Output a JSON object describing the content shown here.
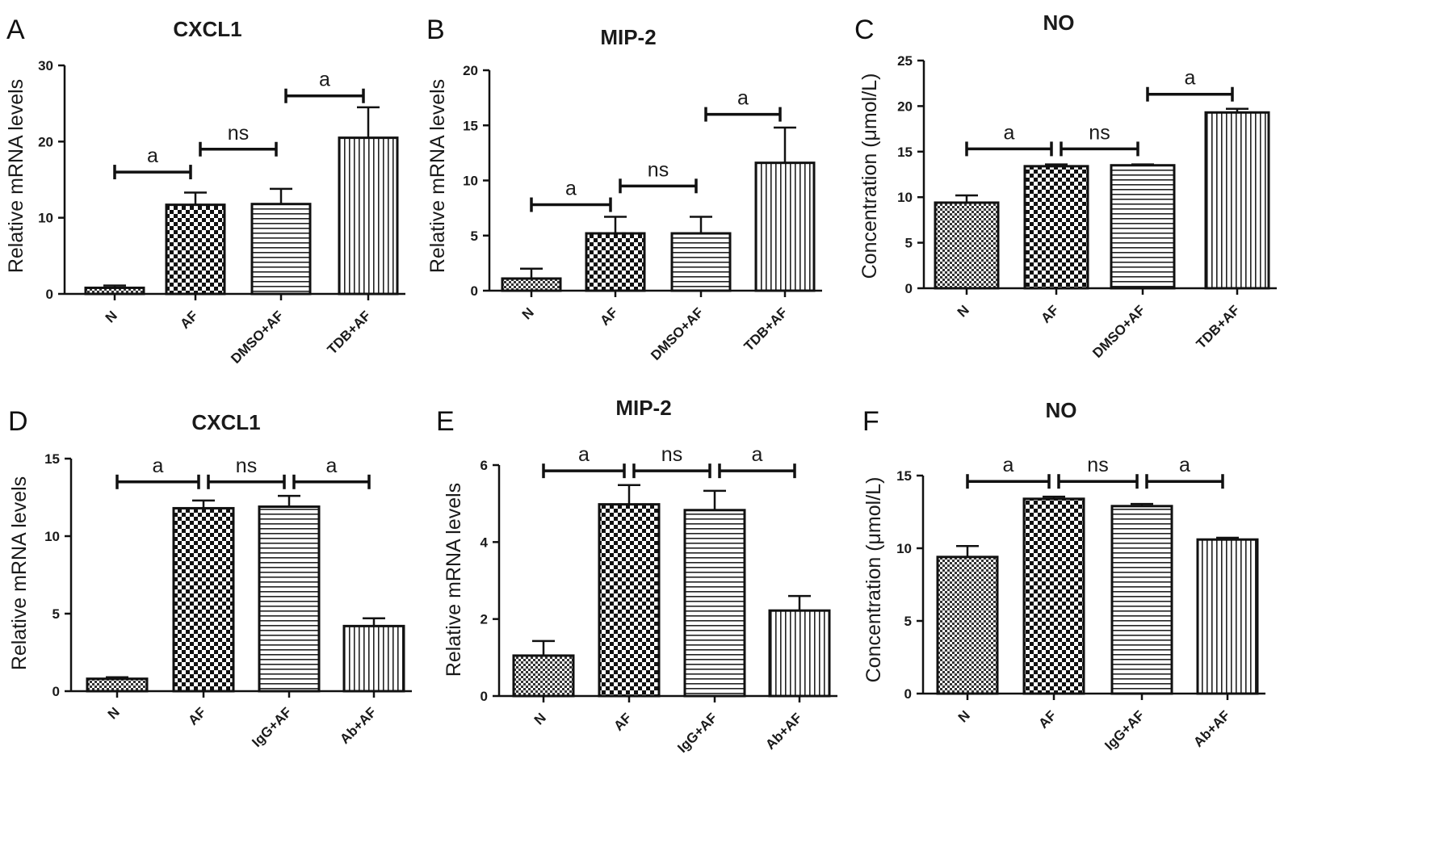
{
  "figure": {
    "panels": [
      {
        "letter": "A",
        "title": "CXCL1",
        "ylabel": "Relative mRNA levels"
      },
      {
        "letter": "B",
        "title": "MIP-2",
        "ylabel": "Relative mRNA levels"
      },
      {
        "letter": "C",
        "title": "NO",
        "ylabel": "Concentration (μmol/L)"
      },
      {
        "letter": "D",
        "title": "CXCL1",
        "ylabel": "Relative mRNA levels"
      },
      {
        "letter": "E",
        "title": "MIP-2",
        "ylabel": "Relative mRNA levels"
      },
      {
        "letter": "F",
        "title": "NO",
        "ylabel": "Concentration (μmol/L)"
      }
    ]
  },
  "colors": {
    "bar_fill": "#ffffff",
    "bar_stroke": "#111111",
    "pattern": "#222222"
  },
  "chart_data": [
    {
      "type": "bar",
      "title": "CXCL1",
      "ylabel": "Relative mRNA levels",
      "categories": [
        "N",
        "AF",
        "DMSO+AF",
        "TDB+AF"
      ],
      "values": [
        0.8,
        11.7,
        11.8,
        20.5
      ],
      "errors": [
        0.3,
        1.6,
        2.0,
        4.0
      ],
      "patterns": [
        "fine-check",
        "check",
        "horizontal",
        "vertical"
      ],
      "ylim": [
        0,
        30
      ],
      "yticks": [
        0,
        10,
        20,
        30
      ],
      "comparisons": [
        {
          "from": 0,
          "to": 1,
          "label": "a",
          "y": 16
        },
        {
          "from": 1,
          "to": 2,
          "label": "ns",
          "y": 19
        },
        {
          "from": 2,
          "to": 3,
          "label": "a",
          "y": 26
        }
      ]
    },
    {
      "type": "bar",
      "title": "MIP-2",
      "ylabel": "Relative mRNA levels",
      "categories": [
        "N",
        "AF",
        "DMSO+AF",
        "TDB+AF"
      ],
      "values": [
        1.1,
        5.2,
        5.2,
        11.6
      ],
      "errors": [
        0.9,
        1.5,
        1.5,
        3.2
      ],
      "patterns": [
        "fine-check",
        "check",
        "horizontal",
        "vertical"
      ],
      "ylim": [
        0,
        20
      ],
      "yticks": [
        0,
        5,
        10,
        15,
        20
      ],
      "comparisons": [
        {
          "from": 0,
          "to": 1,
          "label": "a",
          "y": 7.8
        },
        {
          "from": 1,
          "to": 2,
          "label": "ns",
          "y": 9.5
        },
        {
          "from": 2,
          "to": 3,
          "label": "a",
          "y": 16
        }
      ]
    },
    {
      "type": "bar",
      "title": "NO",
      "ylabel": "Concentration (μmol/L)",
      "categories": [
        "N",
        "AF",
        "DMSO+AF",
        "TDB+AF"
      ],
      "values": [
        9.4,
        13.4,
        13.5,
        19.3
      ],
      "errors": [
        0.8,
        0.2,
        0.1,
        0.4
      ],
      "patterns": [
        "fine-check",
        "check",
        "horizontal",
        "vertical"
      ],
      "ylim": [
        0,
        25
      ],
      "yticks": [
        0,
        5,
        10,
        15,
        20,
        25
      ],
      "comparisons": [
        {
          "from": 0,
          "to": 1,
          "label": "a",
          "y": 15.3
        },
        {
          "from": 1,
          "to": 2,
          "label": "ns",
          "y": 15.3
        },
        {
          "from": 2,
          "to": 3,
          "label": "a",
          "y": 21.3
        }
      ]
    },
    {
      "type": "bar",
      "title": "CXCL1",
      "ylabel": "Relative mRNA levels",
      "categories": [
        "N",
        "AF",
        "IgG+AF",
        "Ab+AF"
      ],
      "values": [
        0.8,
        11.8,
        11.9,
        4.2
      ],
      "errors": [
        0.1,
        0.5,
        0.7,
        0.5
      ],
      "patterns": [
        "fine-check",
        "check",
        "horizontal",
        "vertical"
      ],
      "ylim": [
        0,
        15
      ],
      "yticks": [
        0,
        5,
        10,
        15
      ],
      "comparisons": [
        {
          "from": 0,
          "to": 1,
          "label": "a",
          "y": 13.5
        },
        {
          "from": 1,
          "to": 2,
          "label": "ns",
          "y": 13.5
        },
        {
          "from": 2,
          "to": 3,
          "label": "a",
          "y": 13.5
        }
      ]
    },
    {
      "type": "bar",
      "title": "MIP-2",
      "ylabel": "Relative mRNA levels",
      "categories": [
        "N",
        "AF",
        "IgG+AF",
        "Ab+AF"
      ],
      "values": [
        1.05,
        4.98,
        4.83,
        2.22
      ],
      "errors": [
        0.38,
        0.5,
        0.5,
        0.38
      ],
      "patterns": [
        "fine-check",
        "check",
        "horizontal",
        "vertical"
      ],
      "ylim": [
        0,
        6
      ],
      "yticks": [
        0,
        2,
        4,
        6
      ],
      "comparisons": [
        {
          "from": 0,
          "to": 1,
          "label": "a",
          "y": 5.85
        },
        {
          "from": 1,
          "to": 2,
          "label": "ns",
          "y": 5.85
        },
        {
          "from": 2,
          "to": 3,
          "label": "a",
          "y": 5.85
        }
      ]
    },
    {
      "type": "bar",
      "title": "NO",
      "ylabel": "Concentration (μmol/L)",
      "categories": [
        "N",
        "AF",
        "IgG+AF",
        "Ab+AF"
      ],
      "values": [
        9.4,
        13.4,
        12.9,
        10.6
      ],
      "errors": [
        0.75,
        0.15,
        0.15,
        0.12
      ],
      "patterns": [
        "fine-check",
        "check",
        "horizontal",
        "vertical"
      ],
      "ylim": [
        0,
        15
      ],
      "yticks": [
        0,
        5,
        10,
        15
      ],
      "comparisons": [
        {
          "from": 0,
          "to": 1,
          "label": "a",
          "y": 14.6
        },
        {
          "from": 1,
          "to": 2,
          "label": "ns",
          "y": 14.6
        },
        {
          "from": 2,
          "to": 3,
          "label": "a",
          "y": 14.6
        }
      ]
    }
  ]
}
